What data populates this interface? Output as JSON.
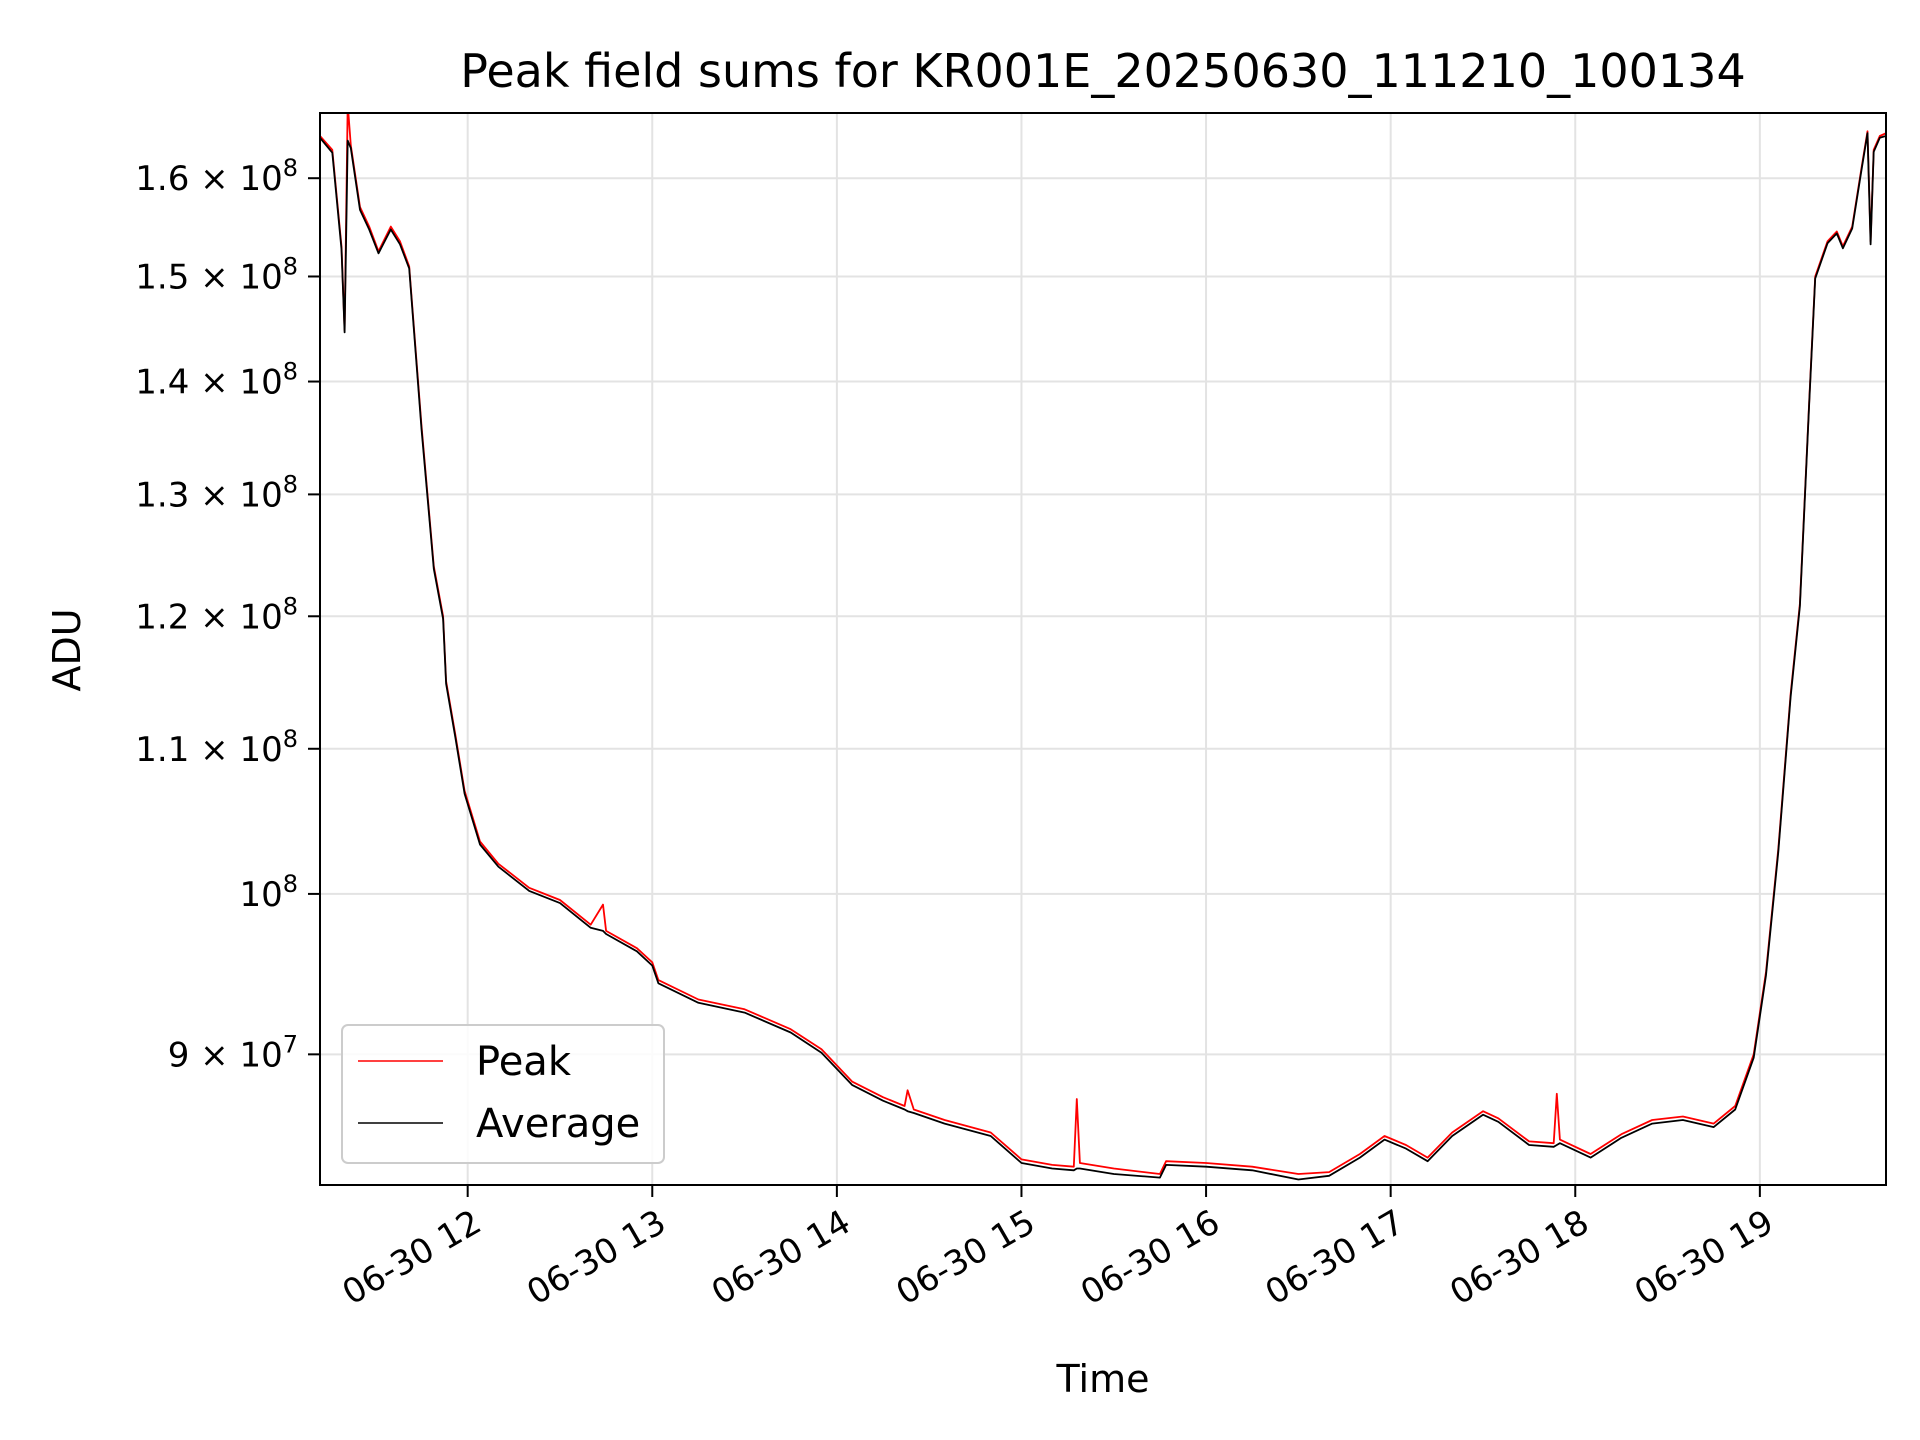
{
  "chart_data": {
    "type": "line",
    "title": "Peak field sums for KR001E_20250630_111210_100134",
    "xlabel": "Time",
    "ylabel": "ADU",
    "y_scale": "log",
    "xlim": [
      "2025-06-30 11:12",
      "2025-06-30 19:41"
    ],
    "ylim": [
      82600000,
      167000000
    ],
    "grid": true,
    "legend_position": "lower-left",
    "x_ticks": [
      {
        "value": "2025-06-30 12:00",
        "label": "06-30 12"
      },
      {
        "value": "2025-06-30 13:00",
        "label": "06-30 13"
      },
      {
        "value": "2025-06-30 14:00",
        "label": "06-30 14"
      },
      {
        "value": "2025-06-30 15:00",
        "label": "06-30 15"
      },
      {
        "value": "2025-06-30 16:00",
        "label": "06-30 16"
      },
      {
        "value": "2025-06-30 17:00",
        "label": "06-30 17"
      },
      {
        "value": "2025-06-30 18:00",
        "label": "06-30 18"
      },
      {
        "value": "2025-06-30 19:00",
        "label": "06-30 19"
      }
    ],
    "y_ticks": [
      {
        "value": 90000000,
        "base": "9 × 10",
        "exp": "7"
      },
      {
        "value": 100000000,
        "base": "10",
        "exp": "8"
      },
      {
        "value": 110000000,
        "base": "1.1 × 10",
        "exp": "8"
      },
      {
        "value": 120000000,
        "base": "1.2 × 10",
        "exp": "8"
      },
      {
        "value": 130000000,
        "base": "1.3 × 10",
        "exp": "8"
      },
      {
        "value": 140000000,
        "base": "1.4 × 10",
        "exp": "8"
      },
      {
        "value": 150000000,
        "base": "1.5 × 10",
        "exp": "8"
      },
      {
        "value": 160000000,
        "base": "1.6 × 10",
        "exp": "8"
      }
    ],
    "series": [
      {
        "name": "Peak",
        "color": "#ff0000",
        "points": [
          [
            "2025-06-30 11:12",
            164500000
          ],
          [
            "2025-06-30 11:16",
            163000000
          ],
          [
            "2025-06-30 11:19",
            153000000
          ],
          [
            "2025-06-30 11:20",
            144800000
          ],
          [
            "2025-06-30 11:21",
            168000000
          ],
          [
            "2025-06-30 11:22",
            163500000
          ],
          [
            "2025-06-30 11:25",
            157000000
          ],
          [
            "2025-06-30 11:28",
            155000000
          ],
          [
            "2025-06-30 11:31",
            152500000
          ],
          [
            "2025-06-30 11:35",
            155000000
          ],
          [
            "2025-06-30 11:38",
            153500000
          ],
          [
            "2025-06-30 11:41",
            151000000
          ],
          [
            "2025-06-30 11:45",
            136000000
          ],
          [
            "2025-06-30 11:49",
            124000000
          ],
          [
            "2025-06-30 11:52",
            120000000
          ],
          [
            "2025-06-30 11:53",
            115000000
          ],
          [
            "2025-06-30 11:56",
            111000000
          ],
          [
            "2025-06-30 11:59",
            107000000
          ],
          [
            "2025-06-30 12:04",
            103500000
          ],
          [
            "2025-06-30 12:10",
            102000000
          ],
          [
            "2025-06-30 12:20",
            100400000
          ],
          [
            "2025-06-30 12:30",
            99600000
          ],
          [
            "2025-06-30 12:40",
            98000000
          ],
          [
            "2025-06-30 12:44",
            99300000
          ],
          [
            "2025-06-30 12:45",
            97600000
          ],
          [
            "2025-06-30 12:55",
            96500000
          ],
          [
            "2025-06-30 13:00",
            95600000
          ],
          [
            "2025-06-30 13:02",
            94500000
          ],
          [
            "2025-06-30 13:15",
            93300000
          ],
          [
            "2025-06-30 13:30",
            92700000
          ],
          [
            "2025-06-30 13:45",
            91500000
          ],
          [
            "2025-06-30 13:55",
            90300000
          ],
          [
            "2025-06-30 14:05",
            88400000
          ],
          [
            "2025-06-30 14:15",
            87500000
          ],
          [
            "2025-06-30 14:22",
            87000000
          ],
          [
            "2025-06-30 14:23",
            87900000
          ],
          [
            "2025-06-30 14:25",
            86800000
          ],
          [
            "2025-06-30 14:35",
            86200000
          ],
          [
            "2025-06-30 14:50",
            85500000
          ],
          [
            "2025-06-30 15:00",
            84000000
          ],
          [
            "2025-06-30 15:10",
            83700000
          ],
          [
            "2025-06-30 15:17",
            83600000
          ],
          [
            "2025-06-30 15:18",
            87400000
          ],
          [
            "2025-06-30 15:19",
            83800000
          ],
          [
            "2025-06-30 15:30",
            83500000
          ],
          [
            "2025-06-30 15:45",
            83200000
          ],
          [
            "2025-06-30 15:47",
            83900000
          ],
          [
            "2025-06-30 16:00",
            83800000
          ],
          [
            "2025-06-30 16:15",
            83600000
          ],
          [
            "2025-06-30 16:30",
            83200000
          ],
          [
            "2025-06-30 16:40",
            83300000
          ],
          [
            "2025-06-30 16:50",
            84300000
          ],
          [
            "2025-06-30 16:58",
            85300000
          ],
          [
            "2025-06-30 17:05",
            84800000
          ],
          [
            "2025-06-30 17:12",
            84100000
          ],
          [
            "2025-06-30 17:20",
            85500000
          ],
          [
            "2025-06-30 17:30",
            86700000
          ],
          [
            "2025-06-30 17:35",
            86300000
          ],
          [
            "2025-06-30 17:45",
            85000000
          ],
          [
            "2025-06-30 17:53",
            84900000
          ],
          [
            "2025-06-30 17:54",
            87700000
          ],
          [
            "2025-06-30 17:55",
            85100000
          ],
          [
            "2025-06-30 18:05",
            84300000
          ],
          [
            "2025-06-30 18:15",
            85400000
          ],
          [
            "2025-06-30 18:25",
            86200000
          ],
          [
            "2025-06-30 18:35",
            86400000
          ],
          [
            "2025-06-30 18:45",
            86000000
          ],
          [
            "2025-06-30 18:52",
            87000000
          ],
          [
            "2025-06-30 18:58",
            90000000
          ],
          [
            "2025-06-30 19:02",
            95000000
          ],
          [
            "2025-06-30 19:06",
            103000000
          ],
          [
            "2025-06-30 19:10",
            114000000
          ],
          [
            "2025-06-30 19:13",
            121000000
          ],
          [
            "2025-06-30 19:16",
            138000000
          ],
          [
            "2025-06-30 19:18",
            150000000
          ],
          [
            "2025-06-30 19:22",
            153500000
          ],
          [
            "2025-06-30 19:25",
            154500000
          ],
          [
            "2025-06-30 19:27",
            153000000
          ],
          [
            "2025-06-30 19:30",
            155000000
          ],
          [
            "2025-06-30 19:33",
            161000000
          ],
          [
            "2025-06-30 19:35",
            165000000
          ],
          [
            "2025-06-30 19:36",
            153500000
          ],
          [
            "2025-06-30 19:37",
            163000000
          ],
          [
            "2025-06-30 19:39",
            164500000
          ],
          [
            "2025-06-30 19:41",
            164800000
          ]
        ]
      },
      {
        "name": "Average",
        "color": "#000000",
        "points": [
          [
            "2025-06-30 11:12",
            164300000
          ],
          [
            "2025-06-30 11:16",
            162700000
          ],
          [
            "2025-06-30 11:19",
            152700000
          ],
          [
            "2025-06-30 11:20",
            144600000
          ],
          [
            "2025-06-30 11:21",
            164000000
          ],
          [
            "2025-06-30 11:22",
            163200000
          ],
          [
            "2025-06-30 11:25",
            156700000
          ],
          [
            "2025-06-30 11:28",
            154700000
          ],
          [
            "2025-06-30 11:31",
            152300000
          ],
          [
            "2025-06-30 11:35",
            154700000
          ],
          [
            "2025-06-30 11:38",
            153200000
          ],
          [
            "2025-06-30 11:41",
            150800000
          ],
          [
            "2025-06-30 11:45",
            135700000
          ],
          [
            "2025-06-30 11:49",
            123800000
          ],
          [
            "2025-06-30 11:52",
            119800000
          ],
          [
            "2025-06-30 11:53",
            114800000
          ],
          [
            "2025-06-30 11:56",
            110800000
          ],
          [
            "2025-06-30 11:59",
            106800000
          ],
          [
            "2025-06-30 12:04",
            103300000
          ],
          [
            "2025-06-30 12:10",
            101800000
          ],
          [
            "2025-06-30 12:20",
            100200000
          ],
          [
            "2025-06-30 12:30",
            99400000
          ],
          [
            "2025-06-30 12:40",
            97800000
          ],
          [
            "2025-06-30 12:44",
            97600000
          ],
          [
            "2025-06-30 12:45",
            97400000
          ],
          [
            "2025-06-30 12:55",
            96300000
          ],
          [
            "2025-06-30 13:00",
            95400000
          ],
          [
            "2025-06-30 13:02",
            94300000
          ],
          [
            "2025-06-30 13:15",
            93100000
          ],
          [
            "2025-06-30 13:30",
            92500000
          ],
          [
            "2025-06-30 13:45",
            91300000
          ],
          [
            "2025-06-30 13:55",
            90100000
          ],
          [
            "2025-06-30 14:05",
            88200000
          ],
          [
            "2025-06-30 14:15",
            87300000
          ],
          [
            "2025-06-30 14:22",
            86800000
          ],
          [
            "2025-06-30 14:23",
            86700000
          ],
          [
            "2025-06-30 14:25",
            86600000
          ],
          [
            "2025-06-30 14:35",
            86000000
          ],
          [
            "2025-06-30 14:50",
            85300000
          ],
          [
            "2025-06-30 15:00",
            83800000
          ],
          [
            "2025-06-30 15:10",
            83500000
          ],
          [
            "2025-06-30 15:17",
            83400000
          ],
          [
            "2025-06-30 15:18",
            83500000
          ],
          [
            "2025-06-30 15:19",
            83500000
          ],
          [
            "2025-06-30 15:30",
            83200000
          ],
          [
            "2025-06-30 15:45",
            83000000
          ],
          [
            "2025-06-30 15:47",
            83700000
          ],
          [
            "2025-06-30 16:00",
            83600000
          ],
          [
            "2025-06-30 16:15",
            83400000
          ],
          [
            "2025-06-30 16:30",
            82900000
          ],
          [
            "2025-06-30 16:40",
            83100000
          ],
          [
            "2025-06-30 16:50",
            84100000
          ],
          [
            "2025-06-30 16:58",
            85100000
          ],
          [
            "2025-06-30 17:05",
            84600000
          ],
          [
            "2025-06-30 17:12",
            83900000
          ],
          [
            "2025-06-30 17:20",
            85300000
          ],
          [
            "2025-06-30 17:30",
            86500000
          ],
          [
            "2025-06-30 17:35",
            86100000
          ],
          [
            "2025-06-30 17:45",
            84800000
          ],
          [
            "2025-06-30 17:53",
            84700000
          ],
          [
            "2025-06-30 17:54",
            84800000
          ],
          [
            "2025-06-30 17:55",
            84900000
          ],
          [
            "2025-06-30 18:05",
            84100000
          ],
          [
            "2025-06-30 18:15",
            85200000
          ],
          [
            "2025-06-30 18:25",
            86000000
          ],
          [
            "2025-06-30 18:35",
            86200000
          ],
          [
            "2025-06-30 18:45",
            85800000
          ],
          [
            "2025-06-30 18:52",
            86800000
          ],
          [
            "2025-06-30 18:58",
            89800000
          ],
          [
            "2025-06-30 19:02",
            94800000
          ],
          [
            "2025-06-30 19:06",
            102800000
          ],
          [
            "2025-06-30 19:10",
            113800000
          ],
          [
            "2025-06-30 19:13",
            120800000
          ],
          [
            "2025-06-30 19:16",
            137800000
          ],
          [
            "2025-06-30 19:18",
            149800000
          ],
          [
            "2025-06-30 19:22",
            153300000
          ],
          [
            "2025-06-30 19:25",
            154300000
          ],
          [
            "2025-06-30 19:27",
            152800000
          ],
          [
            "2025-06-30 19:30",
            154800000
          ],
          [
            "2025-06-30 19:33",
            160800000
          ],
          [
            "2025-06-30 19:35",
            164800000
          ],
          [
            "2025-06-30 19:36",
            153200000
          ],
          [
            "2025-06-30 19:37",
            162800000
          ],
          [
            "2025-06-30 19:39",
            164300000
          ],
          [
            "2025-06-30 19:41",
            164500000
          ]
        ]
      }
    ]
  }
}
